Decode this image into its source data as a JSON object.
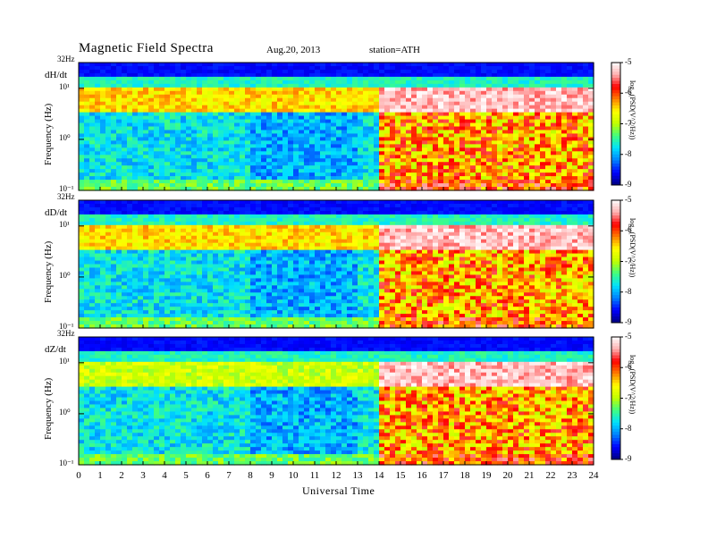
{
  "header": {
    "title": "Magnetic  Field  Spectra",
    "date": "Aug.20, 2013",
    "station": "station=ATH"
  },
  "colors": {
    "colormap": [
      "#00007f",
      "#0000ff",
      "#0080ff",
      "#00e0ff",
      "#40ff80",
      "#c0ff00",
      "#ffff00",
      "#ff8000",
      "#ff0000",
      "#ffb0b0",
      "#ffffff"
    ]
  },
  "chart_data": [
    {
      "type": "heatmap",
      "panel_label": "dH/dt",
      "ylabel": "Frequency  (Hz)",
      "xlabel": "Universal Time",
      "xlim": [
        0,
        24
      ],
      "ylim": [
        0.1,
        32
      ],
      "yscale": "log",
      "y_ticks": [
        {
          "label": "32Hz",
          "value": 32
        },
        {
          "label": "10¹",
          "value": 10
        },
        {
          "label": "10⁰",
          "value": 1
        },
        {
          "label": "10⁻¹",
          "value": 0.1
        }
      ],
      "colorbar": {
        "label": "log₁₀(PSD(V^2/Hz))",
        "range": [
          -9,
          -5
        ],
        "ticks": [
          "-5",
          "-6",
          "-7",
          "-8",
          "-9"
        ]
      }
    },
    {
      "type": "heatmap",
      "panel_label": "dD/dt",
      "ylabel": "Frequency  (Hz)",
      "xlim": [
        0,
        24
      ],
      "ylim": [
        0.1,
        32
      ],
      "yscale": "log",
      "y_ticks": [
        {
          "label": "32Hz",
          "value": 32
        },
        {
          "label": "10¹",
          "value": 10
        },
        {
          "label": "10⁰",
          "value": 1
        },
        {
          "label": "10⁻¹",
          "value": 0.1
        }
      ],
      "colorbar": {
        "label": "log₁₀(PSD(V^2/Hz))",
        "range": [
          -9,
          -5
        ],
        "ticks": [
          "-5",
          "-6",
          "-7",
          "-8",
          "-9"
        ]
      }
    },
    {
      "type": "heatmap",
      "panel_label": "dZ/dt",
      "ylabel": "Frequency  (Hz)",
      "xlim": [
        0,
        24
      ],
      "ylim": [
        0.1,
        32
      ],
      "yscale": "log",
      "y_ticks": [
        {
          "label": "32Hz",
          "value": 32
        },
        {
          "label": "10¹",
          "value": 10
        },
        {
          "label": "10⁰",
          "value": 1
        },
        {
          "label": "10⁻¹",
          "value": 0.1
        }
      ],
      "colorbar": {
        "label": "log₁₀(PSD(V^2/Hz))",
        "range": [
          -9,
          -5
        ],
        "ticks": [
          "-5",
          "-6",
          "-7",
          "-8",
          "-9"
        ]
      }
    }
  ],
  "x_axis": {
    "label": "Universal Time",
    "ticks": [
      "0",
      "1",
      "2",
      "3",
      "4",
      "5",
      "6",
      "7",
      "8",
      "9",
      "10",
      "11",
      "12",
      "13",
      "14",
      "15",
      "16",
      "17",
      "18",
      "19",
      "20",
      "21",
      "22",
      "23",
      "24"
    ]
  }
}
